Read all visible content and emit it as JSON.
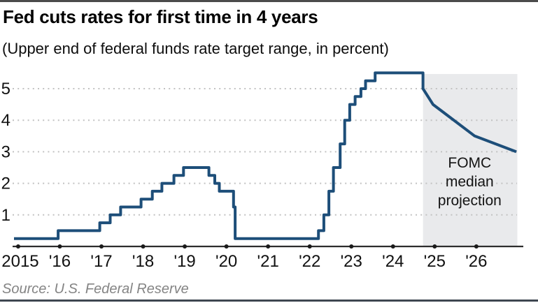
{
  "header": {
    "title": "Fed cuts rates for first time in 4 years",
    "subtitle": "(Upper end of federal funds rate target range, in percent)"
  },
  "footer": {
    "source": "Source: U.S. Federal Reserve"
  },
  "chart_data": {
    "type": "line",
    "title": "Fed cuts rates for first time in 4 years",
    "subtitle": "(Upper end of federal funds rate target range, in percent)",
    "xlabel": "",
    "ylabel": "percent",
    "grid": "dotted horizontal",
    "legend_position": "none",
    "xlim": [
      2014.9,
      2026.96
    ],
    "ylim": [
      0,
      5.75
    ],
    "yticks": [
      1,
      2,
      3,
      4,
      5
    ],
    "xticks": [
      {
        "x": 2015,
        "label": "2015"
      },
      {
        "x": 2016,
        "label": "'16"
      },
      {
        "x": 2017,
        "label": "'17"
      },
      {
        "x": 2018,
        "label": "'18"
      },
      {
        "x": 2019,
        "label": "'19"
      },
      {
        "x": 2020,
        "label": "'20"
      },
      {
        "x": 2021,
        "label": "'21"
      },
      {
        "x": 2022,
        "label": "'22"
      },
      {
        "x": 2023,
        "label": "'23"
      },
      {
        "x": 2024,
        "label": "'24"
      },
      {
        "x": 2025,
        "label": "'25"
      },
      {
        "x": 2026,
        "label": "'26"
      }
    ],
    "colors": {
      "line": "#1d4e79",
      "projection_fill": "#e9eaec",
      "gridline": "#c2c2c2",
      "axis": "#2d2d2d",
      "tick_dot": "#1a1a1a",
      "tick_label": "#111111",
      "annotation_text": "#141414"
    },
    "series": [
      {
        "name": "Upper end of federal funds rate target range (actual)",
        "interpolation": "step-after",
        "points": [
          [
            2014.9,
            0.25
          ],
          [
            2015.96,
            0.5
          ],
          [
            2016.96,
            0.75
          ],
          [
            2017.21,
            1.0
          ],
          [
            2017.46,
            1.25
          ],
          [
            2017.95,
            1.5
          ],
          [
            2018.22,
            1.75
          ],
          [
            2018.45,
            2.0
          ],
          [
            2018.74,
            2.25
          ],
          [
            2018.97,
            2.5
          ],
          [
            2019.58,
            2.25
          ],
          [
            2019.72,
            2.0
          ],
          [
            2019.83,
            1.75
          ],
          [
            2020.17,
            1.25
          ],
          [
            2020.21,
            0.25
          ],
          [
            2022.21,
            0.5
          ],
          [
            2022.34,
            1.0
          ],
          [
            2022.46,
            1.75
          ],
          [
            2022.57,
            2.5
          ],
          [
            2022.73,
            3.25
          ],
          [
            2022.84,
            4.0
          ],
          [
            2022.96,
            4.5
          ],
          [
            2023.09,
            4.75
          ],
          [
            2023.23,
            5.0
          ],
          [
            2023.34,
            5.25
          ],
          [
            2023.57,
            5.5
          ],
          [
            2024.72,
            5.0
          ]
        ]
      },
      {
        "name": "FOMC median projection",
        "interpolation": "linear",
        "points": [
          [
            2024.72,
            5.0
          ],
          [
            2024.96,
            4.5
          ],
          [
            2025.96,
            3.5
          ],
          [
            2026.96,
            3.0
          ]
        ]
      }
    ],
    "projection_region": {
      "x_start": 2024.72,
      "x_end": 2026.96,
      "label_lines": [
        "FOMC",
        "median",
        "projection"
      ]
    }
  }
}
